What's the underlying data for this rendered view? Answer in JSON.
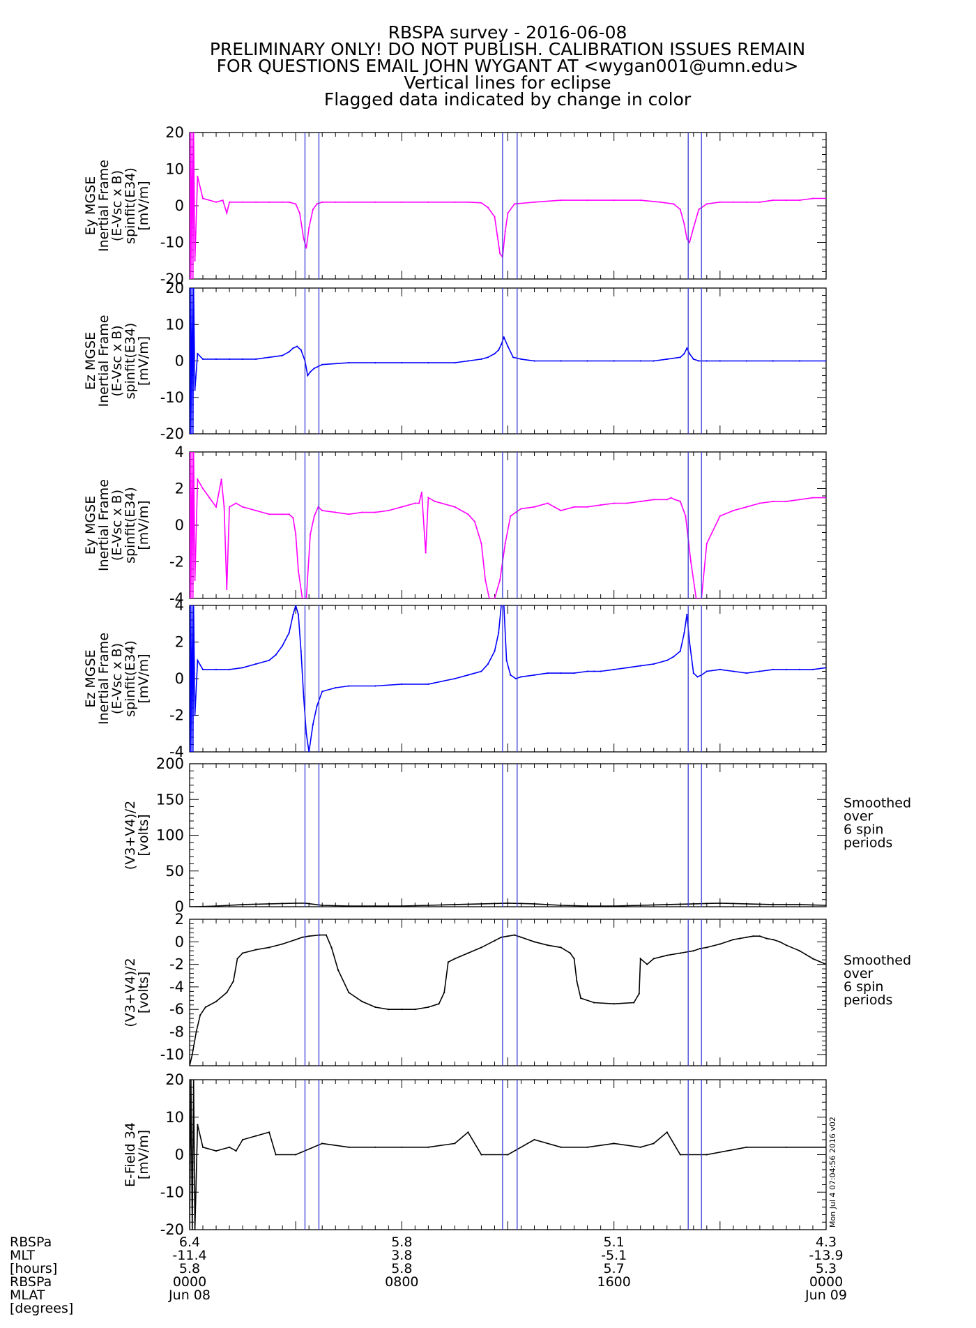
{
  "title_lines": [
    "RBSPA survey - 2016-06-08",
    "PRELIMINARY ONLY! DO NOT PUBLISH. CALIBRATION ISSUES REMAIN",
    "FOR QUESTIONS EMAIL JOHN WYGANT AT <wygan001@umn.edu>",
    "Vertical lines for eclipse",
    "Flagged data indicated by change in color"
  ],
  "eclipse_lines_hours": [
    8.7,
    9.75,
    23.6,
    24.7,
    37.6,
    38.6
  ],
  "eclipse_color": "#3a3ad8",
  "stamp": "Mon Jul  4 07:04:56 2016 v02",
  "colors": {
    "magenta": "#ff00ff",
    "blue": "#0000ff",
    "black": "#000000"
  },
  "chart_data": [
    {
      "id": "p1",
      "type": "line",
      "ylabel_lines": [
        "Ey MGSE",
        "Inertial Frame",
        "(E-Vsc x B)",
        "spinfit(E34)",
        "[mV/m]"
      ],
      "ylim": [
        -20,
        20
      ],
      "yticks": [
        -20,
        -10,
        0,
        10,
        20
      ],
      "color": "#ff00ff",
      "side_note": [],
      "series": [
        {
          "x": [
            0.0,
            0.05,
            0.1,
            0.18,
            0.25,
            0.3,
            0.4,
            0.6,
            1.0,
            2.0,
            2.5,
            2.8,
            3.0,
            4.0,
            5.0,
            6.0,
            7.0,
            7.5,
            8.0,
            8.3,
            8.6,
            8.8,
            9.0,
            9.3,
            9.6,
            10.0,
            11.0,
            12.0,
            14.0,
            16.0,
            18.0,
            20.0,
            21.0,
            22.0,
            22.5,
            23.0,
            23.2,
            23.4,
            23.6,
            23.8,
            24.0,
            24.5,
            26.0,
            28.0,
            30.0,
            32.0,
            34.0,
            35.5,
            36.5,
            37.0,
            37.3,
            37.5,
            37.7,
            38.0,
            38.4,
            39.0,
            40.0,
            41.0,
            42.0,
            43.0,
            44.0,
            45.0,
            46.0,
            47.0,
            48.0
          ],
          "y": [
            -20,
            20,
            -20,
            20,
            -20,
            20,
            -15,
            8,
            2,
            1,
            1.5,
            -2,
            1,
            1,
            1,
            1,
            1,
            1,
            0.5,
            -2,
            -9,
            -11.5,
            -6,
            -1,
            0.5,
            1,
            1,
            1,
            1,
            1,
            1,
            1,
            1,
            0.8,
            -0.5,
            -3,
            -8,
            -13,
            -14,
            -7,
            -2,
            0.5,
            1,
            1.5,
            1.5,
            1.5,
            1.5,
            1,
            0.5,
            -1,
            -5,
            -9,
            -10,
            -6,
            -1,
            0.5,
            1,
            1,
            1,
            1,
            1.5,
            1.5,
            1.5,
            2,
            2
          ]
        }
      ]
    },
    {
      "id": "p2",
      "type": "line",
      "ylabel_lines": [
        "Ez MGSE",
        "Inertial Frame",
        "(E-Vsc x B)",
        "spinfit(E34)",
        "[mV/m]"
      ],
      "ylim": [
        -20,
        20
      ],
      "yticks": [
        -20,
        -10,
        0,
        10,
        20
      ],
      "color": "#0000ff",
      "side_note": [],
      "series": [
        {
          "x": [
            0.0,
            0.05,
            0.1,
            0.18,
            0.25,
            0.3,
            0.4,
            0.6,
            1.0,
            2.0,
            3.0,
            4.0,
            5.0,
            6.0,
            7.0,
            7.5,
            7.8,
            8.1,
            8.4,
            8.7,
            8.9,
            9.1,
            9.4,
            10.0,
            12.0,
            14.0,
            16.0,
            18.0,
            20.0,
            21.0,
            22.0,
            22.5,
            23.0,
            23.3,
            23.5,
            23.7,
            24.0,
            24.4,
            25.0,
            26.0,
            28.0,
            30.0,
            32.0,
            34.0,
            35.0,
            36.0,
            37.0,
            37.3,
            37.5,
            37.7,
            38.0,
            38.4,
            39.0,
            40.0,
            42.0,
            44.0,
            46.0,
            48.0
          ],
          "y": [
            -20,
            20,
            -20,
            20,
            -20,
            20,
            -8,
            2,
            0.5,
            0.5,
            0.5,
            0.5,
            0.5,
            1,
            1.5,
            2.5,
            3.5,
            4,
            3,
            0,
            -4,
            -3,
            -2,
            -1,
            -0.5,
            -0.5,
            -0.5,
            -0.5,
            -0.5,
            0,
            0.5,
            1,
            2,
            3,
            4.5,
            6.5,
            4,
            1,
            0.5,
            0,
            0,
            0,
            0,
            0,
            0,
            0.5,
            1,
            2,
            3.5,
            2,
            0.5,
            0,
            0,
            0,
            0,
            0,
            0,
            0
          ]
        }
      ]
    },
    {
      "id": "p3",
      "type": "line",
      "ylabel_lines": [
        "Ey MGSE",
        "Inertial Frame",
        "(E-Vsc x B)",
        "spinfit(E34)",
        "[mV/m]"
      ],
      "ylim": [
        -4,
        4
      ],
      "yticks": [
        -4,
        -2,
        0,
        2,
        4
      ],
      "color": "#ff00ff",
      "side_note": [],
      "series": [
        {
          "x": [
            0.0,
            0.05,
            0.1,
            0.18,
            0.25,
            0.3,
            0.4,
            0.6,
            1.0,
            1.5,
            2.0,
            2.4,
            2.6,
            2.8,
            3.0,
            3.5,
            4.0,
            5.0,
            6.0,
            7.0,
            7.5,
            7.8,
            8.0,
            8.2,
            8.5,
            8.8,
            9.1,
            9.4,
            9.7,
            10.0,
            11.0,
            12.0,
            13.0,
            14.0,
            15.0,
            16.0,
            17.0,
            17.3,
            17.5,
            17.8,
            18.0,
            18.5,
            19.0,
            20.0,
            21.0,
            21.5,
            22.0,
            22.3,
            22.6,
            23.0,
            23.4,
            23.8,
            24.2,
            24.6,
            25.0,
            26.0,
            27.0,
            27.5,
            28.0,
            29.0,
            30.0,
            31.0,
            32.0,
            33.0,
            34.0,
            35.0,
            36.0,
            36.3,
            36.6,
            37.0,
            37.4,
            37.8,
            38.2,
            38.6,
            39.0,
            40.0,
            41.0,
            42.0,
            43.0,
            44.0,
            45.0,
            46.0,
            47.0,
            48.0
          ],
          "y": [
            -4,
            4,
            -4,
            4,
            -4,
            4,
            -3,
            2.5,
            2,
            1.5,
            1,
            2.5,
            1,
            -3.5,
            1,
            1.2,
            1,
            0.8,
            0.6,
            0.6,
            0.6,
            0.4,
            -0.5,
            -2.5,
            -4,
            -4,
            -0.5,
            0.5,
            1,
            0.8,
            0.7,
            0.6,
            0.7,
            0.7,
            0.8,
            1,
            1.2,
            1.2,
            1.8,
            -1.5,
            1.5,
            1.3,
            1.2,
            1.0,
            0.6,
            0.2,
            -1,
            -3,
            -4,
            -4,
            -3,
            -1,
            0.5,
            0.7,
            0.9,
            1.0,
            1.2,
            1.0,
            0.8,
            1.0,
            1.0,
            1.1,
            1.2,
            1.2,
            1.3,
            1.4,
            1.4,
            1.5,
            1.4,
            1.3,
            0.5,
            -2,
            -4,
            -4,
            -1,
            0.5,
            0.8,
            1.0,
            1.2,
            1.3,
            1.3,
            1.4,
            1.5,
            1.5
          ]
        }
      ]
    },
    {
      "id": "p4",
      "type": "line",
      "ylabel_lines": [
        "Ez MGSE",
        "Inertial Frame",
        "(E-Vsc x B)",
        "spinfit(E34)",
        "[mV/m]"
      ],
      "ylim": [
        -4,
        4
      ],
      "yticks": [
        -4,
        -2,
        0,
        2,
        4
      ],
      "color": "#0000ff",
      "side_note": [],
      "series": [
        {
          "x": [
            0.0,
            0.05,
            0.1,
            0.18,
            0.25,
            0.3,
            0.4,
            0.6,
            1.0,
            2.0,
            3.0,
            4.0,
            5.0,
            6.0,
            6.5,
            7.0,
            7.5,
            7.8,
            8.0,
            8.2,
            8.4,
            8.6,
            8.8,
            9.0,
            9.3,
            9.6,
            10.0,
            11.0,
            12.0,
            14.0,
            16.0,
            18.0,
            20.0,
            21.0,
            22.0,
            22.5,
            23.0,
            23.3,
            23.5,
            23.7,
            23.9,
            24.2,
            24.6,
            25.0,
            26.0,
            27.0,
            28.0,
            29.0,
            30.0,
            30.5,
            31.0,
            32.0,
            33.0,
            34.0,
            35.0,
            36.0,
            36.5,
            37.0,
            37.3,
            37.5,
            37.7,
            38.0,
            38.3,
            38.6,
            39.0,
            40.0,
            41.0,
            42.0,
            43.0,
            44.0,
            45.0,
            46.0,
            47.0,
            48.0
          ],
          "y": [
            -4,
            4,
            -4,
            4,
            -4,
            4,
            -2,
            1,
            0.5,
            0.5,
            0.5,
            0.6,
            0.8,
            1.0,
            1.3,
            1.8,
            2.5,
            3.5,
            4.0,
            3.5,
            1.5,
            -1,
            -3,
            -4,
            -2.5,
            -1.5,
            -0.7,
            -0.5,
            -0.4,
            -0.4,
            -0.3,
            -0.3,
            0,
            0.2,
            0.4,
            0.8,
            1.5,
            2.5,
            4.0,
            4.0,
            1.0,
            0.2,
            0,
            0.1,
            0.2,
            0.3,
            0.3,
            0.3,
            0.4,
            0.4,
            0.4,
            0.5,
            0.6,
            0.7,
            0.8,
            1.0,
            1.2,
            1.5,
            2.5,
            3.5,
            2.0,
            0.3,
            0.1,
            0.2,
            0.4,
            0.5,
            0.4,
            0.3,
            0.4,
            0.5,
            0.5,
            0.5,
            0.5,
            0.6
          ]
        }
      ]
    },
    {
      "id": "p5",
      "type": "line",
      "ylabel_lines": [
        "(V3+V4)/2",
        "[volts]"
      ],
      "ylim": [
        0,
        200
      ],
      "yticks": [
        0,
        50,
        100,
        150,
        200
      ],
      "color": "#000000",
      "side_note": [
        "Smoothed",
        "over",
        "6 spin",
        "periods"
      ],
      "series": [
        {
          "x": [
            0.0,
            0.5,
            2.0,
            4.0,
            6.0,
            8.0,
            8.7,
            10.0,
            12.0,
            14.0,
            16.0,
            18.0,
            20.0,
            22.0,
            24.0,
            26.0,
            28.0,
            30.0,
            32.0,
            34.0,
            36.0,
            38.0,
            40.0,
            42.0,
            44.0,
            46.0,
            48.0
          ],
          "y": [
            0,
            0,
            1,
            3,
            4,
            5,
            5,
            2,
            1,
            1,
            1,
            2,
            3,
            4,
            5,
            4,
            2,
            1,
            1,
            2,
            3,
            4,
            5,
            4,
            3,
            3,
            2
          ]
        }
      ]
    },
    {
      "id": "p6",
      "type": "line",
      "ylabel_lines": [
        "(V3+V4)/2",
        "[volts]"
      ],
      "ylim": [
        -11,
        2
      ],
      "yticks": [
        -10,
        -8,
        -6,
        -4,
        -2,
        0,
        2
      ],
      "color": "#000000",
      "side_note": [
        "Smoothed",
        "over",
        "6 spin",
        "periods"
      ],
      "series": [
        {
          "x": [
            0.0,
            0.2,
            0.5,
            0.8,
            1.2,
            2.0,
            2.8,
            3.3,
            3.6,
            4.0,
            5.0,
            6.0,
            7.0,
            8.0,
            8.5,
            9.0,
            9.8,
            10.3,
            10.7,
            11.2,
            12.0,
            13.0,
            14.0,
            15.0,
            16.0,
            17.0,
            18.0,
            18.8,
            19.2,
            19.5,
            20.0,
            21.0,
            22.0,
            23.0,
            23.5,
            24.0,
            24.5,
            25.0,
            26.0,
            27.0,
            28.0,
            28.7,
            29.0,
            29.2,
            29.5,
            30.5,
            32.0,
            33.5,
            33.9,
            34.0,
            34.5,
            35.0,
            36.0,
            37.0,
            38.0,
            38.5,
            39.0,
            40.0,
            41.0,
            41.5,
            42.0,
            42.5,
            43.0,
            43.5,
            44.0,
            44.5,
            45.0,
            46.0,
            47.0,
            48.0
          ],
          "y": [
            -11,
            -10,
            -8,
            -6.5,
            -5.8,
            -5.3,
            -4.5,
            -3.5,
            -1.5,
            -1.0,
            -0.7,
            -0.5,
            -0.2,
            0.2,
            0.4,
            0.5,
            0.6,
            0.6,
            -0.5,
            -2.5,
            -4.5,
            -5.3,
            -5.8,
            -6.0,
            -6.0,
            -6.0,
            -5.8,
            -5.5,
            -4.5,
            -1.8,
            -1.5,
            -1.0,
            -0.5,
            0.1,
            0.4,
            0.5,
            0.6,
            0.4,
            0.0,
            -0.3,
            -0.5,
            -1.0,
            -1.5,
            -3.5,
            -5.0,
            -5.4,
            -5.5,
            -5.4,
            -4.6,
            -1.5,
            -2.0,
            -1.5,
            -1.2,
            -1.0,
            -0.8,
            -0.6,
            -0.5,
            -0.2,
            0.2,
            0.3,
            0.4,
            0.5,
            0.5,
            0.3,
            0.2,
            0.0,
            -0.3,
            -0.8,
            -1.5,
            -2.0
          ]
        }
      ]
    },
    {
      "id": "p7",
      "type": "line",
      "ylabel_lines": [
        "E-Field 34",
        "[mV/m]"
      ],
      "ylim": [
        -20,
        20
      ],
      "yticks": [
        -20,
        -10,
        0,
        10,
        20
      ],
      "color": "#000000",
      "side_note": [],
      "series": [
        {
          "x": [
            0.0,
            0.1,
            0.2,
            0.3,
            0.4,
            0.6,
            1.0,
            2.0,
            3.0,
            3.5,
            4.0,
            5.0,
            6.0,
            6.5,
            8.0,
            10.0,
            12.0,
            14.0,
            16.0,
            18.0,
            20.0,
            21.0,
            22.0,
            24.0,
            26.0,
            28.0,
            30.0,
            32.0,
            34.0,
            35.0,
            36.0,
            37.0,
            39.0,
            42.0,
            45.0,
            48.0
          ],
          "y": [
            -20,
            20,
            -20,
            20,
            -20,
            8,
            2,
            1,
            2,
            1,
            4,
            5,
            6,
            0,
            0,
            3,
            2,
            2,
            2,
            2,
            3,
            6,
            0,
            0,
            4,
            2,
            2,
            3,
            2,
            3,
            6,
            0,
            0,
            2,
            2,
            2
          ]
        }
      ]
    }
  ],
  "xaxis": {
    "range_hours": [
      0,
      48
    ],
    "row_labels": [
      "RBSPa",
      "MLT",
      "[hours]",
      "RBSPa",
      "MLAT",
      "[degrees]"
    ],
    "ticks": [
      {
        "hours": 0,
        "mlt": "6.4",
        "mlat": "-11.4",
        "val3": "5.8",
        "time": "0000",
        "date": "Jun 08"
      },
      {
        "hours": 16,
        "mlt": "5.8",
        "mlat": "3.8",
        "val3": "5.8",
        "time": "0800",
        "date": ""
      },
      {
        "hours": 32,
        "mlt": "5.1",
        "mlat": "-5.1",
        "val3": "5.7",
        "time": "1600",
        "date": ""
      },
      {
        "hours": 48,
        "mlt": "4.3",
        "mlat": "-13.9",
        "val3": "5.3",
        "time": "0000",
        "date": "Jun 09"
      }
    ]
  }
}
